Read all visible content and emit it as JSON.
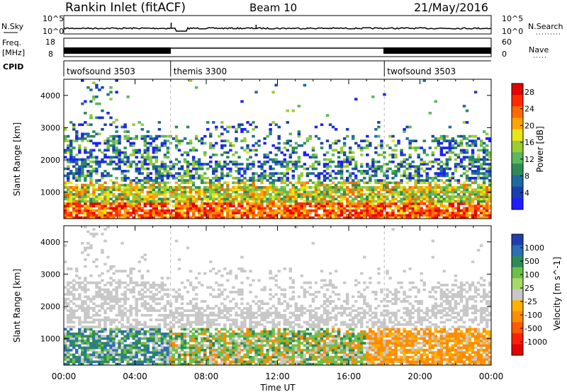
{
  "header": {
    "station": "Rankin Inlet (fitACF)",
    "beam": "Beam 10",
    "date": "21/May/2016"
  },
  "strip": {
    "nsky_label": "N.Sky",
    "nsearch_label": "N.Search",
    "nsky_ticks": [
      "10^5",
      "10^0"
    ],
    "nsky_ticks_right": [
      "10^5",
      "10^0"
    ],
    "freq_label_1": "Freq.",
    "freq_label_2": "[MHz]",
    "freq_ticks": [
      "18",
      "8"
    ],
    "nave_label": "Nave",
    "nave_ticks": [
      "60",
      "0"
    ],
    "cpid_label": "CPID",
    "cpid_segments": [
      {
        "name": "twofsound 3503",
        "start_hour": 0,
        "end_hour": 6
      },
      {
        "name": "themis 3300",
        "start_hour": 6,
        "end_hour": 18
      },
      {
        "name": "twofsound 3503",
        "start_hour": 18,
        "end_hour": 24
      }
    ]
  },
  "chart_data": [
    {
      "type": "heatmap",
      "quantity": "Power",
      "ylabel": "Slant Range [km]",
      "xlabel": "Time UT",
      "x_ticks": [
        "00:00",
        "04:00",
        "08:00",
        "12:00",
        "16:00",
        "20:00",
        "00:00"
      ],
      "xlim_hours": [
        0,
        24
      ],
      "y_ticks": [
        1000,
        2000,
        3000,
        4000
      ],
      "ylim_km": [
        180,
        4500
      ],
      "colorbar": {
        "label": "Power [dB]",
        "ticks": [
          "4",
          "8",
          "12",
          "16",
          "20",
          "24",
          "28"
        ],
        "range": [
          0,
          30
        ],
        "colors": [
          "#1f1fff",
          "#1a3fb0",
          "#1e6aa0",
          "#2e8b57",
          "#5cb85c",
          "#9acd32",
          "#e6e619",
          "#ffa500",
          "#ff6a00",
          "#ff2a00",
          "#e60000"
        ]
      }
    },
    {
      "type": "heatmap",
      "quantity": "Velocity",
      "ylabel": "Slant Range [km]",
      "xlabel": "Time UT",
      "x_ticks": [
        "00:00",
        "04:00",
        "08:00",
        "12:00",
        "16:00",
        "20:00",
        "00:00"
      ],
      "xlim_hours": [
        0,
        24
      ],
      "y_ticks": [
        1000,
        2000,
        3000,
        4000
      ],
      "ylim_km": [
        180,
        4500
      ],
      "colorbar": {
        "label": "Velocity [m s^-1]",
        "ticks": [
          "1000",
          "500",
          "100",
          "25",
          "-25",
          "-100",
          "-500",
          "-1000"
        ],
        "range": [
          -1000,
          1000
        ],
        "colors": [
          "#1f3fb0",
          "#2b6fb5",
          "#2e8b57",
          "#6cc04a",
          "#a6d96a",
          "#c8c8c8",
          "#ffb000",
          "#ff8c00",
          "#ff5a00",
          "#ff2000",
          "#e60000"
        ]
      }
    }
  ],
  "xlabel_bottom": "Time UT"
}
